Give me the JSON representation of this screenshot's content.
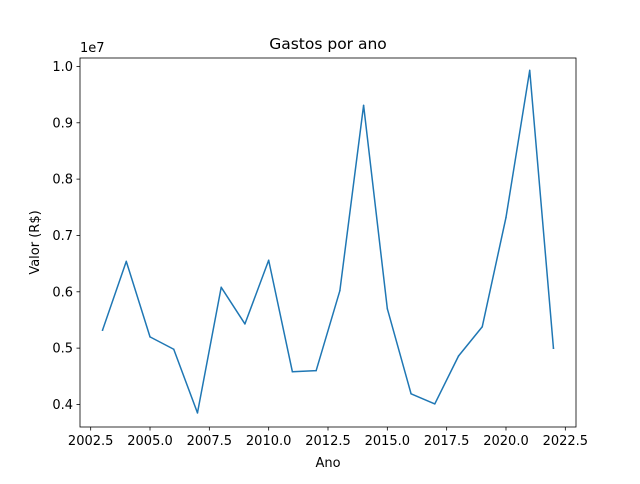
{
  "chart_data": {
    "type": "line",
    "title": "Gastos por ano",
    "xlabel": "Ano",
    "ylabel": "Valor (R$)",
    "y_offset_label": "1e7",
    "xlim": [
      2002.05,
      2022.95
    ],
    "ylim": [
      3600000,
      10150000
    ],
    "x_ticks": [
      2002.5,
      2005.0,
      2007.5,
      2010.0,
      2012.5,
      2015.0,
      2017.5,
      2020.0,
      2022.5
    ],
    "x_tick_labels": [
      "2002.5",
      "2005.0",
      "2007.5",
      "2010.0",
      "2012.5",
      "2015.0",
      "2017.5",
      "2020.0",
      "2022.5"
    ],
    "y_ticks": [
      4000000,
      5000000,
      6000000,
      7000000,
      8000000,
      9000000,
      10000000
    ],
    "y_tick_labels": [
      "0.4",
      "0.5",
      "0.6",
      "0.7",
      "0.8",
      "0.9",
      "1.0"
    ],
    "grid": false,
    "legend": "none",
    "series": [
      {
        "color": "#1f77b4",
        "x": [
          2003,
          2004,
          2005,
          2006,
          2007,
          2008,
          2009,
          2010,
          2011,
          2012,
          2013,
          2014,
          2015,
          2016,
          2017,
          2018,
          2019,
          2020,
          2021,
          2022
        ],
        "y": [
          5320000,
          6540000,
          5200000,
          4980000,
          3850000,
          6080000,
          5430000,
          6560000,
          4580000,
          4600000,
          6020000,
          9310000,
          5700000,
          4190000,
          4010000,
          4860000,
          5380000,
          7320000,
          9930000,
          5000000
        ]
      }
    ]
  }
}
